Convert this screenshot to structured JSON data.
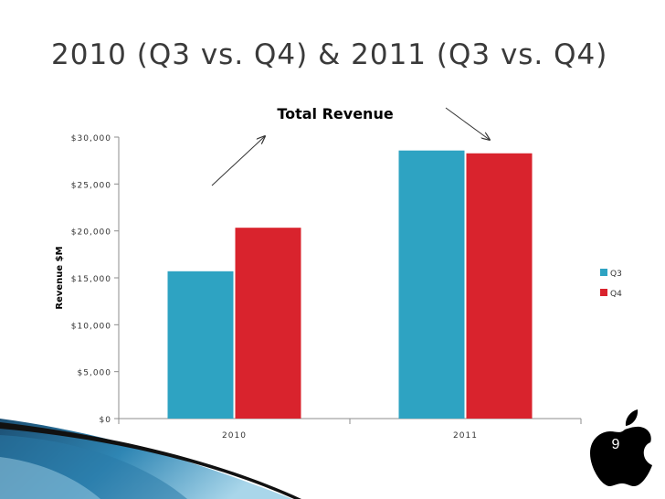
{
  "slide": {
    "title": "2010 (Q3 vs. Q4) & 2011 (Q3 vs. Q4)",
    "page_number": "9",
    "logo_icon": "apple-logo-icon",
    "decoration": "blue-swoosh"
  },
  "chart_data": {
    "type": "bar",
    "title": "Total Revenue",
    "xlabel": "",
    "ylabel": "Revenue $M",
    "categories": [
      "2010",
      "2011"
    ],
    "series": [
      {
        "name": "Q3",
        "values": [
          15700,
          28570
        ],
        "color": "#2ea3c2"
      },
      {
        "name": "Q4",
        "values": [
          20340,
          28270
        ],
        "color": "#d9232d"
      }
    ],
    "ylim": [
      0,
      30000
    ],
    "yticks": [
      0,
      5000,
      10000,
      15000,
      20000,
      25000,
      30000
    ],
    "ytick_labels": [
      "$0",
      "$5,000",
      "$10,000",
      "$15,000",
      "$20,000",
      "$25,000",
      "$30,000"
    ],
    "grid": false,
    "legend": "right",
    "annotations": [
      "arrow-up-right near 2010",
      "arrow-down-right near 2011"
    ]
  }
}
